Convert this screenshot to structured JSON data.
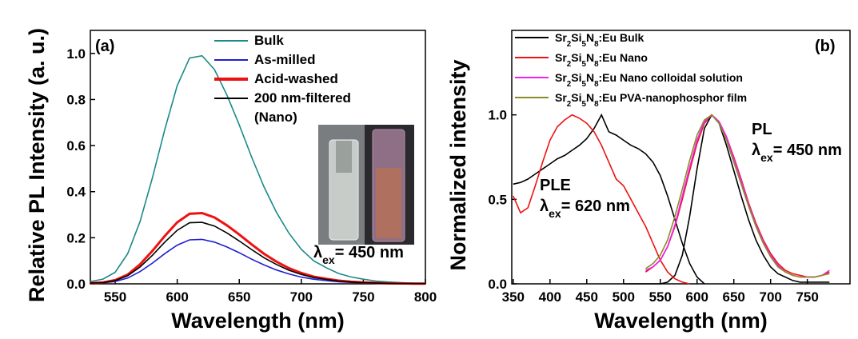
{
  "chart_data": [
    {
      "type": "line",
      "panel_label": "(a)",
      "x_label": "Wavelength (nm)",
      "y_label": "Relative PL Intensity (a. u.)",
      "xlim": [
        530,
        800
      ],
      "xticks": [
        550,
        600,
        650,
        700,
        750,
        800
      ],
      "ylim": [
        0,
        1.1
      ],
      "yticks": [
        {
          "value": 0,
          "label": "0.0"
        },
        0.2,
        0.4,
        0.6,
        0.8,
        {
          "value": 1,
          "label": "1.0"
        }
      ],
      "legend": "upper center",
      "annotations": [
        {
          "symbol": "λ",
          "sub": "ex",
          "text": "= 450 nm"
        }
      ],
      "series": [
        {
          "name": "Bulk",
          "color": "#1a8a8a",
          "x": [
            530,
            540,
            550,
            560,
            570,
            580,
            590,
            600,
            610,
            620,
            630,
            640,
            650,
            660,
            670,
            680,
            690,
            700,
            710,
            720,
            730,
            740,
            750,
            760,
            770,
            780,
            790,
            800
          ],
          "values": [
            0.01,
            0.02,
            0.05,
            0.13,
            0.27,
            0.46,
            0.67,
            0.86,
            0.98,
            0.99,
            0.93,
            0.82,
            0.69,
            0.55,
            0.42,
            0.31,
            0.22,
            0.15,
            0.1,
            0.07,
            0.045,
            0.03,
            0.02,
            0.012,
            0.008,
            0.005,
            0.003,
            0.002
          ]
        },
        {
          "name": "As-milled",
          "color": "#1f1fd0",
          "x": [
            530,
            540,
            550,
            560,
            570,
            580,
            590,
            600,
            610,
            620,
            630,
            640,
            650,
            660,
            670,
            680,
            690,
            700,
            710,
            720,
            730,
            740,
            750,
            760,
            770,
            780,
            790,
            800
          ],
          "values": [
            0.002,
            0.004,
            0.01,
            0.025,
            0.053,
            0.09,
            0.131,
            0.168,
            0.191,
            0.193,
            0.181,
            0.16,
            0.135,
            0.107,
            0.082,
            0.06,
            0.043,
            0.029,
            0.02,
            0.014,
            0.009,
            0.006,
            0.004,
            0.002,
            0.002,
            0.001,
            0.001,
            0.0
          ]
        },
        {
          "name": "Acid-washed",
          "color": "#ee1111",
          "x": [
            530,
            540,
            550,
            560,
            570,
            580,
            590,
            600,
            610,
            620,
            630,
            640,
            650,
            660,
            670,
            680,
            690,
            700,
            710,
            720,
            730,
            740,
            750,
            760,
            770,
            780,
            790,
            800
          ],
          "values": [
            0.003,
            0.006,
            0.016,
            0.04,
            0.084,
            0.143,
            0.208,
            0.267,
            0.304,
            0.307,
            0.288,
            0.254,
            0.214,
            0.171,
            0.13,
            0.096,
            0.068,
            0.047,
            0.031,
            0.022,
            0.014,
            0.009,
            0.006,
            0.004,
            0.002,
            0.002,
            0.001,
            0.001
          ]
        },
        {
          "name": "200 nm-filtered (Nano)",
          "color": "#000000",
          "x": [
            530,
            540,
            550,
            560,
            570,
            580,
            590,
            600,
            610,
            620,
            630,
            640,
            650,
            660,
            670,
            680,
            690,
            700,
            710,
            720,
            730,
            740,
            750,
            760,
            770,
            780,
            790,
            800
          ],
          "values": [
            0.003,
            0.005,
            0.014,
            0.035,
            0.073,
            0.124,
            0.181,
            0.232,
            0.265,
            0.267,
            0.251,
            0.221,
            0.186,
            0.149,
            0.113,
            0.084,
            0.059,
            0.041,
            0.027,
            0.019,
            0.012,
            0.008,
            0.005,
            0.003,
            0.002,
            0.001,
            0.001,
            0.001
          ]
        }
      ]
    },
    {
      "type": "line",
      "panel_label": "(b)",
      "x_label": "Wavelength (nm)",
      "y_label": "Normalized intensity",
      "xlim": [
        348,
        808
      ],
      "xticks": [
        350,
        400,
        450,
        500,
        550,
        600,
        650,
        700,
        750
      ],
      "ylim": [
        0,
        1.5
      ],
      "yticks": [
        {
          "value": 0,
          "label": "0.0"
        },
        0.5,
        {
          "value": 1,
          "label": "1.0"
        }
      ],
      "legend": "upper left",
      "annotations": [
        {
          "label": "PL",
          "symbol": "λ",
          "sub": "ex",
          "text": "= 450 nm"
        },
        {
          "label": "PLE",
          "symbol": "λ",
          "sub": "ex",
          "text": "= 620 nm"
        }
      ],
      "series": [
        {
          "name": "Sr2Si5N8:Eu Bulk",
          "color": "#000000",
          "x": [
            350,
            360,
            370,
            380,
            390,
            400,
            410,
            420,
            430,
            440,
            450,
            460,
            470,
            480,
            490,
            500,
            510,
            520,
            530,
            540,
            550,
            560,
            570,
            580,
            590,
            600,
            610,
            null,
            500,
            510,
            520,
            530,
            540,
            550,
            560,
            570,
            580,
            590,
            600,
            610,
            620,
            630,
            640,
            650,
            660,
            670,
            680,
            690,
            700,
            710,
            720,
            730,
            740,
            750,
            760,
            770,
            780
          ],
          "values": [
            0.59,
            0.6,
            0.62,
            0.65,
            0.68,
            0.71,
            0.74,
            0.76,
            0.79,
            0.82,
            0.86,
            0.92,
            1.0,
            0.9,
            0.88,
            0.85,
            0.82,
            0.8,
            0.77,
            0.72,
            0.64,
            0.52,
            0.38,
            0.24,
            0.12,
            0.04,
            0.0,
            null,
            0.0,
            0.0,
            0.0,
            0.0,
            0.0,
            0.0,
            0.01,
            0.05,
            0.17,
            0.4,
            0.68,
            0.92,
            1.0,
            0.95,
            0.82,
            0.67,
            0.52,
            0.38,
            0.26,
            0.17,
            0.1,
            0.06,
            0.04,
            0.02,
            0.01,
            0.01,
            0.01,
            0.01,
            0.01
          ]
        },
        {
          "name": "Sr2Si5N8:Eu Nano",
          "color": "#ee1111",
          "x": [
            350,
            360,
            370,
            380,
            390,
            400,
            410,
            420,
            430,
            440,
            450,
            460,
            470,
            480,
            490,
            500,
            510,
            520,
            530,
            540,
            550,
            560,
            570,
            580,
            590,
            null,
            530,
            540,
            550,
            560,
            570,
            580,
            590,
            600,
            610,
            620,
            630,
            640,
            650,
            660,
            670,
            680,
            690,
            700,
            710,
            720,
            730,
            740,
            750,
            760,
            770,
            780
          ],
          "values": [
            0.52,
            0.42,
            0.45,
            0.58,
            0.72,
            0.85,
            0.93,
            0.97,
            1.0,
            0.98,
            0.95,
            0.9,
            0.82,
            0.72,
            0.62,
            0.58,
            0.5,
            0.42,
            0.34,
            0.24,
            0.14,
            0.07,
            0.03,
            0.01,
            0.0,
            null,
            0.07,
            0.1,
            0.14,
            0.22,
            0.34,
            0.5,
            0.67,
            0.83,
            0.95,
            1.0,
            0.96,
            0.87,
            0.75,
            0.62,
            0.48,
            0.36,
            0.26,
            0.18,
            0.12,
            0.08,
            0.06,
            0.05,
            0.04,
            0.04,
            0.05,
            0.07
          ]
        },
        {
          "name": "Sr2Si5N8:Eu Nano colloidal solution",
          "color": "#ee22ee",
          "x": [
            530,
            540,
            550,
            560,
            570,
            580,
            590,
            600,
            610,
            620,
            630,
            640,
            650,
            660,
            670,
            680,
            690,
            700,
            710,
            720,
            730,
            740,
            750,
            760,
            770,
            780
          ],
          "values": [
            0.08,
            0.1,
            0.14,
            0.22,
            0.35,
            0.52,
            0.69,
            0.85,
            0.96,
            1.0,
            0.96,
            0.87,
            0.74,
            0.61,
            0.47,
            0.35,
            0.25,
            0.17,
            0.11,
            0.07,
            0.05,
            0.04,
            0.04,
            0.04,
            0.05,
            0.08
          ]
        },
        {
          "name": "Sr2Si5N8:Eu PVA-nanophosphor film",
          "color": "#8a8a2a",
          "x": [
            530,
            540,
            550,
            560,
            570,
            580,
            590,
            600,
            610,
            620,
            630,
            640,
            650,
            660,
            670,
            680,
            690,
            700,
            710,
            720,
            730,
            740,
            750,
            760,
            770,
            780
          ],
          "values": [
            0.09,
            0.12,
            0.17,
            0.26,
            0.4,
            0.56,
            0.73,
            0.88,
            0.97,
            1.0,
            0.95,
            0.85,
            0.72,
            0.59,
            0.46,
            0.34,
            0.24,
            0.16,
            0.1,
            0.07,
            0.05,
            0.04,
            0.04,
            0.04,
            0.05,
            0.06
          ]
        }
      ]
    }
  ]
}
